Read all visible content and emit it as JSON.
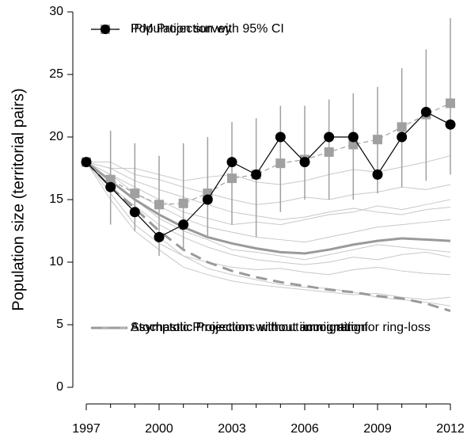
{
  "chart_data": {
    "type": "line",
    "y_label": "Population size (territorial pairs)",
    "x": [
      1997,
      1998,
      1999,
      2000,
      2001,
      2002,
      2003,
      2004,
      2005,
      2006,
      2007,
      2008,
      2009,
      2010,
      2011,
      2012
    ],
    "xlim": [
      1997,
      2012
    ],
    "xticks": [
      1997,
      2000,
      2003,
      2006,
      2009,
      2012
    ],
    "xminorticks": [
      1998,
      1999,
      2001,
      2002,
      2004,
      2005,
      2007,
      2008,
      2010,
      2011
    ],
    "ylim": [
      0,
      30
    ],
    "yticks": [
      0,
      5,
      10,
      15,
      20,
      25,
      30
    ],
    "series": [
      {
        "name": "IPM Projection with 95% CI",
        "color": "#a0a0a0",
        "marker": "square",
        "dash": true,
        "legend": "upper left",
        "values": [
          18,
          16.6,
          15.5,
          14.6,
          14.7,
          15.5,
          16.7,
          17,
          17.9,
          18.2,
          18.8,
          19.4,
          19.8,
          20.8,
          21.8,
          22.7
        ],
        "ci_lower": [
          18,
          13,
          12.5,
          10.5,
          11,
          12,
          13,
          12,
          14,
          15,
          15,
          15,
          15.5,
          16,
          16.5,
          17
        ],
        "ci_upper": [
          18,
          20.5,
          19.5,
          18.5,
          19.5,
          20,
          21.2,
          21.5,
          22.5,
          22.5,
          23,
          23.5,
          24,
          25.5,
          27,
          29.5
        ]
      },
      {
        "name": "Population survey",
        "color": "#000000",
        "marker": "circle",
        "legend": "upper left",
        "values": [
          18,
          16,
          14,
          12,
          13,
          15,
          18,
          17,
          20,
          18,
          20,
          20,
          17,
          20,
          22,
          21
        ]
      },
      {
        "name": "Asymptotic Projection without immigration",
        "color": "#9a9a9a",
        "width": 3,
        "legend": "lower left",
        "values": [
          18,
          16.5,
          15,
          13.8,
          12.8,
          12,
          11.5,
          11.1,
          10.8,
          10.7,
          11,
          11.4,
          11.7,
          11.9,
          11.8,
          11.7
        ]
      },
      {
        "name": "Stochastic Projections without immigration",
        "color": "#c8c8c8",
        "width": 1,
        "legend": "lower left",
        "trajectories": [
          [
            18,
            17,
            16,
            15,
            14,
            13.5,
            13,
            13.2,
            13,
            13.4,
            13.8,
            14,
            14.5,
            14.2,
            14.6,
            15
          ],
          [
            18,
            16,
            14,
            12,
            10.5,
            9.5,
            9,
            8.6,
            8.2,
            8,
            7.9,
            7.6,
            7.2,
            7,
            6.8,
            6.5
          ],
          [
            18,
            17.5,
            17.5,
            17,
            16.5,
            16.8,
            17,
            16.4,
            16.2,
            16.5,
            17,
            17.4,
            17.2,
            17.6,
            18,
            18.5
          ],
          [
            18,
            16.5,
            15,
            13.5,
            12.5,
            11.8,
            11,
            10.8,
            10.5,
            10.2,
            10.6,
            11,
            11.4,
            11.2,
            11,
            10.8
          ],
          [
            18,
            15.5,
            13,
            11.5,
            10.5,
            10,
            9.6,
            9.4,
            9.5,
            9.2,
            9,
            9.4,
            9.6,
            9.3,
            9.1,
            9
          ],
          [
            18,
            18,
            17,
            16.6,
            16,
            15.5,
            15,
            14.6,
            14.8,
            15.2,
            15,
            15.4,
            15.6,
            16,
            15.8,
            16.2
          ],
          [
            18,
            16,
            14.5,
            13,
            12,
            11.2,
            10.6,
            10.2,
            10,
            9.8,
            10,
            10.4,
            10.2,
            10.6,
            10.8,
            10.4
          ],
          [
            18,
            17,
            15.5,
            14.5,
            13.5,
            12.8,
            12.4,
            12,
            11.8,
            11.6,
            12,
            12.4,
            12.8,
            13,
            13.2,
            13.4
          ],
          [
            18,
            15,
            12.5,
            11,
            9.6,
            9,
            8.5,
            8.2,
            8,
            7.8,
            7.6,
            7.4,
            7.5,
            7.2,
            7,
            7.2
          ],
          [
            18,
            17.5,
            16.5,
            15.8,
            15.2,
            14.6,
            14,
            13.7,
            13.4,
            13.6,
            14,
            14.3,
            14,
            13.8,
            14.2,
            14.4
          ]
        ]
      },
      {
        "name": "Asymptotic Projection without accounting for ring-loss",
        "color": "#9a9a9a",
        "width": 3,
        "dash": true,
        "legend": "lower left",
        "values": [
          18,
          16,
          14.3,
          12.5,
          11,
          10,
          9.3,
          8.8,
          8.4,
          8.1,
          7.8,
          7.6,
          7.3,
          7.1,
          6.7,
          6.1
        ]
      }
    ]
  }
}
